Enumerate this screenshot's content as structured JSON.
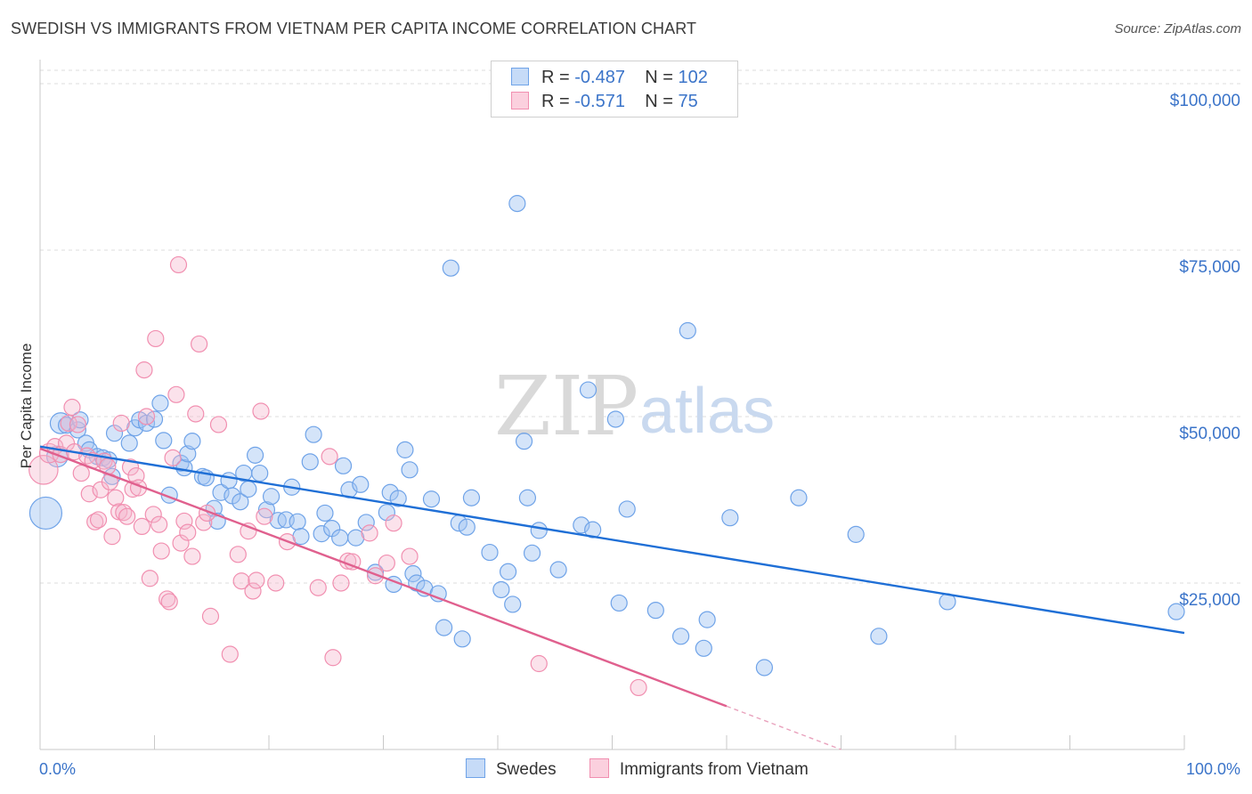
{
  "header": {
    "title": "SWEDISH VS IMMIGRANTS FROM VIETNAM PER CAPITA INCOME CORRELATION CHART",
    "source": "Source: ZipAtlas.com"
  },
  "legend": {
    "series1": {
      "r_label": "R = ",
      "r_value": "-0.487",
      "n_label": "N = ",
      "n_value": "102"
    },
    "series2": {
      "r_label": "R = ",
      "r_value": "-0.571",
      "n_label": "N = ",
      "n_value": "75"
    }
  },
  "bottom_legend": {
    "series1": "Swedes",
    "series2": "Immigrants from Vietnam"
  },
  "watermark": {
    "zip": "ZIP",
    "atlas": "atlas"
  },
  "colors": {
    "blue": "#6fa3e8",
    "blue_line": "#1f6fd6",
    "pink": "#f18fb0",
    "pink_line": "#e0608e",
    "tick_text": "#3b74c9"
  },
  "chart_data": {
    "type": "scatter",
    "title": "SWEDISH VS IMMIGRANTS FROM VIETNAM PER CAPITA INCOME CORRELATION CHART",
    "xlabel": "",
    "ylabel": "Per Capita Income",
    "xlim": [
      0,
      100
    ],
    "ylim": [
      0,
      102000
    ],
    "x_tick_labels": [
      "0.0%",
      "100.0%"
    ],
    "y_ticks": [
      25000,
      50000,
      75000,
      100000
    ],
    "y_tick_labels": [
      "$25,000",
      "$50,000",
      "$75,000",
      "$100,000"
    ],
    "grid": "horizontal dashed",
    "legend_placement": "top-center",
    "series": [
      {
        "name": "Swedes",
        "color": "#6fa3e8",
        "trend": {
          "x": [
            0,
            100
          ],
          "y": [
            45500,
            17500
          ]
        },
        "points": [
          [
            0.5,
            35500,
            2
          ],
          [
            1.5,
            44000,
            1.3
          ],
          [
            1.8,
            49000,
            1.3
          ],
          [
            2.3,
            48700,
            1
          ],
          [
            3.3,
            48000,
            1
          ],
          [
            3.5,
            49500,
            1
          ],
          [
            4,
            46000,
            1
          ],
          [
            4.3,
            45000,
            1
          ],
          [
            5,
            44000,
            1
          ],
          [
            5.5,
            43800,
            1
          ],
          [
            6,
            43500,
            1
          ],
          [
            6.3,
            41000,
            1
          ],
          [
            6.5,
            47500,
            1
          ],
          [
            7.8,
            46000,
            1
          ],
          [
            8.3,
            48300,
            1
          ],
          [
            8.7,
            49500,
            1
          ],
          [
            9.3,
            49000,
            1
          ],
          [
            10,
            49600,
            1
          ],
          [
            10.5,
            52000,
            1
          ],
          [
            10.8,
            46400,
            1
          ],
          [
            11.3,
            38200,
            1
          ],
          [
            12.3,
            43000,
            1
          ],
          [
            12.6,
            42300,
            1
          ],
          [
            12.9,
            44400,
            1
          ],
          [
            13.3,
            46300,
            1
          ],
          [
            14.2,
            41000,
            1
          ],
          [
            14.5,
            40800,
            1
          ],
          [
            15.2,
            36200,
            1
          ],
          [
            15.5,
            34300,
            1
          ],
          [
            15.8,
            38600,
            1
          ],
          [
            16.5,
            40400,
            1
          ],
          [
            16.8,
            38100,
            1
          ],
          [
            17.5,
            37200,
            1
          ],
          [
            17.8,
            41500,
            1
          ],
          [
            18.2,
            39100,
            1
          ],
          [
            18.8,
            44200,
            1
          ],
          [
            19.2,
            41500,
            1
          ],
          [
            19.8,
            36000,
            1
          ],
          [
            20.2,
            38000,
            1
          ],
          [
            20.8,
            34400,
            1
          ],
          [
            21.5,
            34500,
            1
          ],
          [
            22,
            39400,
            1
          ],
          [
            22.5,
            34200,
            1
          ],
          [
            22.8,
            32000,
            1
          ],
          [
            23.6,
            43200,
            1
          ],
          [
            23.9,
            47300,
            1
          ],
          [
            24.6,
            32400,
            1
          ],
          [
            24.9,
            35500,
            1
          ],
          [
            25.5,
            33200,
            1
          ],
          [
            26.2,
            31800,
            1
          ],
          [
            26.5,
            42600,
            1
          ],
          [
            27,
            39000,
            1
          ],
          [
            27.6,
            31800,
            1
          ],
          [
            28,
            39800,
            1
          ],
          [
            28.5,
            34100,
            1
          ],
          [
            29.3,
            26600,
            1
          ],
          [
            30.3,
            35600,
            1
          ],
          [
            30.6,
            38600,
            1
          ],
          [
            30.9,
            24800,
            1
          ],
          [
            31.3,
            37700,
            1
          ],
          [
            31.9,
            45000,
            1
          ],
          [
            32.3,
            42000,
            1
          ],
          [
            32.6,
            26400,
            1
          ],
          [
            32.9,
            25000,
            1
          ],
          [
            33.6,
            24200,
            1
          ],
          [
            34.2,
            37600,
            1
          ],
          [
            34.8,
            23400,
            1
          ],
          [
            35.3,
            18300,
            1
          ],
          [
            35.9,
            72300,
            1
          ],
          [
            36.6,
            34000,
            1
          ],
          [
            36.9,
            16600,
            1
          ],
          [
            37.3,
            33400,
            1
          ],
          [
            37.7,
            37800,
            1
          ],
          [
            39.3,
            29600,
            1
          ],
          [
            40.3,
            24000,
            1
          ],
          [
            40.9,
            26700,
            1
          ],
          [
            41.3,
            21800,
            1
          ],
          [
            41.7,
            82000,
            1
          ],
          [
            42.3,
            46300,
            1
          ],
          [
            42.6,
            37800,
            1
          ],
          [
            43,
            29500,
            1
          ],
          [
            43.6,
            32900,
            1
          ],
          [
            45.3,
            27000,
            1
          ],
          [
            47.3,
            33700,
            1
          ],
          [
            47.9,
            54000,
            1
          ],
          [
            48.3,
            33000,
            1
          ],
          [
            50.3,
            49600,
            1
          ],
          [
            50.6,
            22000,
            1
          ],
          [
            51.3,
            36100,
            1
          ],
          [
            53.8,
            20900,
            1
          ],
          [
            56,
            17000,
            1
          ],
          [
            56.6,
            62900,
            1
          ],
          [
            58,
            15200,
            1
          ],
          [
            58.3,
            19500,
            1
          ],
          [
            60.3,
            34800,
            1
          ],
          [
            63.3,
            12300,
            1
          ],
          [
            66.3,
            37800,
            1
          ],
          [
            71.3,
            32300,
            1
          ],
          [
            73.3,
            17000,
            1
          ],
          [
            79.3,
            22200,
            1
          ],
          [
            99.3,
            20700,
            1
          ]
        ]
      },
      {
        "name": "Immigrants from Vietnam",
        "color": "#f18fb0",
        "trend": {
          "x": [
            0,
            60
          ],
          "y": [
            45200,
            6500
          ]
        },
        "trend_dashed": {
          "x": [
            60,
            70
          ],
          "y": [
            6500,
            0
          ]
        },
        "points": [
          [
            0.3,
            42000,
            1.8
          ],
          [
            0.8,
            44500,
            1.2
          ],
          [
            1.3,
            45500,
            1
          ],
          [
            1.8,
            44300,
            1
          ],
          [
            2.3,
            46000,
            1
          ],
          [
            2.5,
            49000,
            1
          ],
          [
            2.8,
            51400,
            1
          ],
          [
            3,
            44700,
            1
          ],
          [
            3.3,
            48800,
            1
          ],
          [
            3.6,
            41500,
            1
          ],
          [
            4.1,
            44100,
            1
          ],
          [
            4.3,
            38400,
            1
          ],
          [
            4.6,
            43400,
            1
          ],
          [
            4.8,
            34200,
            1
          ],
          [
            5.1,
            34500,
            1
          ],
          [
            5.3,
            39000,
            1
          ],
          [
            5.6,
            43300,
            1
          ],
          [
            5.9,
            42500,
            1
          ],
          [
            6.1,
            40200,
            1
          ],
          [
            6.3,
            32000,
            1
          ],
          [
            6.6,
            37800,
            1
          ],
          [
            6.9,
            35700,
            1
          ],
          [
            7.1,
            49000,
            1
          ],
          [
            7.3,
            35600,
            1
          ],
          [
            7.6,
            35000,
            1
          ],
          [
            7.9,
            42400,
            1
          ],
          [
            8.1,
            39100,
            1
          ],
          [
            8.4,
            41100,
            1
          ],
          [
            8.6,
            39300,
            1
          ],
          [
            8.9,
            33500,
            1
          ],
          [
            9.1,
            57000,
            1
          ],
          [
            9.3,
            50000,
            1
          ],
          [
            9.6,
            25700,
            1
          ],
          [
            9.9,
            35300,
            1
          ],
          [
            10.1,
            61700,
            1
          ],
          [
            10.4,
            33800,
            1
          ],
          [
            10.6,
            29800,
            1
          ],
          [
            11.1,
            22600,
            1
          ],
          [
            11.3,
            22200,
            1
          ],
          [
            11.6,
            43800,
            1
          ],
          [
            11.9,
            53300,
            1
          ],
          [
            12.1,
            72800,
            1
          ],
          [
            12.3,
            31000,
            1
          ],
          [
            12.6,
            34300,
            1
          ],
          [
            12.9,
            32600,
            1
          ],
          [
            13.3,
            29000,
            1
          ],
          [
            13.6,
            50400,
            1
          ],
          [
            13.9,
            60900,
            1
          ],
          [
            14.3,
            34100,
            1
          ],
          [
            14.6,
            35500,
            1
          ],
          [
            14.9,
            20000,
            1
          ],
          [
            15.6,
            48800,
            1
          ],
          [
            16.6,
            14300,
            1
          ],
          [
            17.3,
            29300,
            1
          ],
          [
            17.6,
            25300,
            1
          ],
          [
            18.2,
            32800,
            1
          ],
          [
            18.6,
            23800,
            1
          ],
          [
            18.9,
            25400,
            1
          ],
          [
            19.3,
            50800,
            1
          ],
          [
            19.6,
            35000,
            1
          ],
          [
            20.6,
            25000,
            1
          ],
          [
            21.6,
            31200,
            1
          ],
          [
            24.3,
            24300,
            1
          ],
          [
            25.3,
            44000,
            1
          ],
          [
            25.6,
            13800,
            1
          ],
          [
            26.3,
            25000,
            1
          ],
          [
            26.9,
            28300,
            1
          ],
          [
            27.3,
            28200,
            1
          ],
          [
            28.8,
            32500,
            1
          ],
          [
            29.3,
            26100,
            1
          ],
          [
            30.3,
            28000,
            1
          ],
          [
            30.9,
            34000,
            1
          ],
          [
            32.3,
            29000,
            1
          ],
          [
            43.6,
            12900,
            1
          ],
          [
            52.3,
            9300,
            1
          ]
        ]
      }
    ]
  }
}
